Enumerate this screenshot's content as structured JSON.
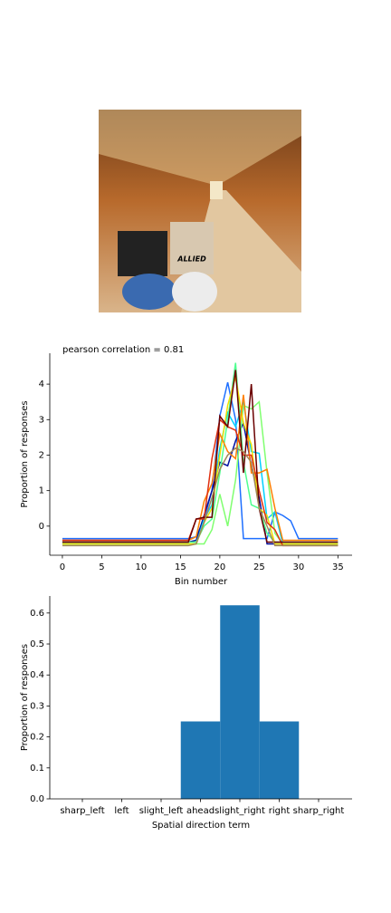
{
  "photo": {
    "label": "ALLIED"
  },
  "chart_data": [
    {
      "type": "line",
      "title": "pearson correlation = 0.81",
      "xlabel": "Bin number",
      "ylabel": "Proportion of responses",
      "x": [
        0,
        1,
        2,
        3,
        4,
        5,
        6,
        7,
        8,
        9,
        10,
        11,
        12,
        13,
        14,
        15,
        16,
        17,
        18,
        19,
        20,
        21,
        22,
        23,
        24,
        25,
        26,
        27,
        28,
        29,
        30,
        31,
        32,
        33,
        34,
        35
      ],
      "xlim": [
        -1.6,
        36.8
      ],
      "xticks": [
        0,
        5,
        10,
        15,
        20,
        25,
        30,
        35
      ],
      "ylim": [
        -0.82,
        4.87
      ],
      "yticks": [
        0,
        1,
        2,
        3,
        4
      ],
      "series": [
        {
          "color": "#1e6fff",
          "values": [
            -0.35,
            -0.35,
            -0.35,
            -0.35,
            -0.35,
            -0.35,
            -0.35,
            -0.35,
            -0.35,
            -0.35,
            -0.35,
            -0.35,
            -0.35,
            -0.35,
            -0.35,
            -0.35,
            -0.35,
            -0.3,
            0.2,
            1.0,
            3.1,
            4.05,
            3.0,
            -0.35,
            -0.35,
            -0.35,
            -0.35,
            0.4,
            0.3,
            0.15,
            -0.35,
            -0.35,
            -0.35,
            -0.35,
            -0.35,
            -0.35
          ]
        },
        {
          "color": "#0010a0",
          "values": [
            -0.45,
            -0.45,
            -0.45,
            -0.45,
            -0.45,
            -0.45,
            -0.45,
            -0.45,
            -0.45,
            -0.45,
            -0.45,
            -0.45,
            -0.45,
            -0.45,
            -0.45,
            -0.45,
            -0.45,
            -0.4,
            0.3,
            1.0,
            1.8,
            1.7,
            2.4,
            2.9,
            1.7,
            0.8,
            -0.5,
            -0.5,
            -0.5,
            -0.5,
            -0.5,
            -0.5,
            -0.5,
            -0.5,
            -0.5,
            -0.5
          ]
        },
        {
          "color": "#00d0ff",
          "values": [
            -0.5,
            -0.5,
            -0.5,
            -0.5,
            -0.5,
            -0.5,
            -0.5,
            -0.5,
            -0.5,
            -0.5,
            -0.5,
            -0.5,
            -0.5,
            -0.5,
            -0.5,
            -0.5,
            -0.5,
            -0.5,
            0.2,
            0.6,
            2.2,
            3.2,
            2.8,
            3.5,
            2.1,
            2.05,
            0.2,
            0.4,
            -0.5,
            -0.5,
            -0.5,
            -0.5,
            -0.5,
            -0.5,
            -0.5,
            -0.5
          ]
        },
        {
          "color": "#80ff70",
          "values": [
            -0.5,
            -0.5,
            -0.5,
            -0.5,
            -0.5,
            -0.5,
            -0.5,
            -0.5,
            -0.5,
            -0.5,
            -0.5,
            -0.5,
            -0.5,
            -0.5,
            -0.5,
            -0.5,
            -0.5,
            -0.5,
            -0.5,
            -0.1,
            0.9,
            0.0,
            1.3,
            3.4,
            3.3,
            3.5,
            1.5,
            -0.2,
            -0.5,
            -0.5,
            -0.5,
            -0.5,
            -0.5,
            -0.5,
            -0.5,
            -0.5
          ]
        },
        {
          "color": "#50ff90",
          "values": [
            -0.45,
            -0.45,
            -0.45,
            -0.45,
            -0.45,
            -0.45,
            -0.45,
            -0.45,
            -0.45,
            -0.45,
            -0.45,
            -0.45,
            -0.45,
            -0.45,
            -0.45,
            -0.45,
            -0.45,
            -0.45,
            0.0,
            0.2,
            1.5,
            3.0,
            4.6,
            1.8,
            0.6,
            0.5,
            -0.2,
            -0.45,
            -0.45,
            -0.45,
            -0.45,
            -0.45,
            -0.45,
            -0.45,
            -0.45,
            -0.45
          ]
        },
        {
          "color": "#f0e000",
          "values": [
            -0.5,
            -0.5,
            -0.5,
            -0.5,
            -0.5,
            -0.5,
            -0.5,
            -0.5,
            -0.5,
            -0.5,
            -0.5,
            -0.5,
            -0.5,
            -0.5,
            -0.5,
            -0.5,
            -0.5,
            -0.5,
            0.1,
            0.5,
            2.0,
            3.4,
            4.2,
            2.9,
            2.3,
            0.5,
            0.3,
            -0.5,
            -0.5,
            -0.5,
            -0.5,
            -0.5,
            -0.5,
            -0.5,
            -0.5,
            -0.5
          ]
        },
        {
          "color": "#ff7f00",
          "values": [
            -0.4,
            -0.4,
            -0.4,
            -0.4,
            -0.4,
            -0.4,
            -0.4,
            -0.4,
            -0.4,
            -0.4,
            -0.4,
            -0.4,
            -0.4,
            -0.4,
            -0.4,
            -0.4,
            -0.4,
            -0.3,
            0.7,
            1.2,
            2.6,
            2.1,
            1.9,
            3.7,
            1.5,
            1.5,
            1.6,
            0.5,
            -0.4,
            -0.4,
            -0.4,
            -0.4,
            -0.4,
            -0.4,
            -0.4,
            -0.4
          ]
        },
        {
          "color": "#e03010",
          "values": [
            -0.4,
            -0.4,
            -0.4,
            -0.4,
            -0.4,
            -0.4,
            -0.4,
            -0.4,
            -0.4,
            -0.4,
            -0.4,
            -0.4,
            -0.4,
            -0.4,
            -0.4,
            -0.4,
            -0.4,
            0.2,
            0.2,
            1.9,
            3.0,
            2.8,
            2.7,
            2.0,
            2.0,
            1.0,
            0.1,
            -0.1,
            -0.55,
            -0.55,
            -0.55,
            -0.55,
            -0.55,
            -0.55,
            -0.55,
            -0.55
          ]
        },
        {
          "color": "#6a0000",
          "values": [
            -0.45,
            -0.45,
            -0.45,
            -0.45,
            -0.45,
            -0.45,
            -0.45,
            -0.45,
            -0.45,
            -0.45,
            -0.45,
            -0.45,
            -0.45,
            -0.45,
            -0.45,
            -0.45,
            -0.45,
            0.2,
            0.25,
            0.25,
            3.1,
            2.8,
            4.4,
            1.5,
            4.0,
            0.5,
            -0.45,
            -0.45,
            -0.45,
            -0.45,
            -0.45,
            -0.45,
            -0.45,
            -0.45,
            -0.45,
            -0.45
          ]
        },
        {
          "color": "#a08858",
          "values": [
            -0.55,
            -0.55,
            -0.55,
            -0.55,
            -0.55,
            -0.55,
            -0.55,
            -0.55,
            -0.55,
            -0.55,
            -0.55,
            -0.55,
            -0.55,
            -0.55,
            -0.55,
            -0.55,
            -0.55,
            -0.5,
            0.1,
            0.8,
            1.6,
            2.0,
            2.2,
            2.1,
            1.8,
            0.5,
            0.0,
            -0.55,
            -0.55,
            -0.55,
            -0.55,
            -0.55,
            -0.55,
            -0.55,
            -0.55,
            -0.55
          ]
        }
      ]
    },
    {
      "type": "bar",
      "xlabel": "Spatial direction term",
      "ylabel": "Proportion of responses",
      "categories": [
        "sharp_left",
        "left",
        "slight_left",
        "ahead",
        "slight_right",
        "right",
        "sharp_right"
      ],
      "values": [
        0,
        0,
        0,
        0.25,
        0.625,
        0.25,
        0
      ],
      "color": "#1f77b4",
      "ylim": [
        0,
        0.655
      ],
      "yticks": [
        {
          "value": 0,
          "label": "0.0"
        },
        {
          "value": 0.1,
          "label": "0.1"
        },
        {
          "value": 0.2,
          "label": "0.2"
        },
        {
          "value": 0.3,
          "label": "0.3"
        },
        {
          "value": 0.4,
          "label": "0.4"
        },
        {
          "value": 0.5,
          "label": "0.5"
        },
        {
          "value": 0.6,
          "label": "0.6"
        }
      ]
    }
  ]
}
